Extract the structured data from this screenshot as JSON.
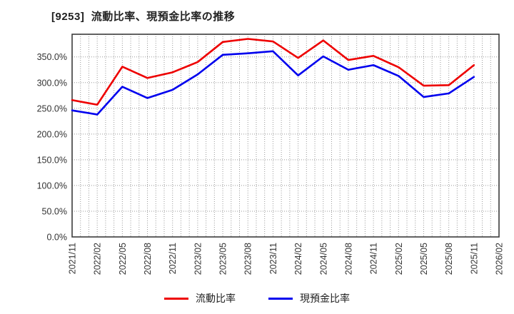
{
  "page": {
    "title": "[9253]  流動比率、現預金比率の推移"
  },
  "chart_data": {
    "type": "line",
    "title": "[9253] 流動比率、現預金比率の推移",
    "categories": [
      "2021/11",
      "2022/02",
      "2022/05",
      "2022/08",
      "2022/11",
      "2023/02",
      "2023/05",
      "2023/08",
      "2023/11",
      "2024/02",
      "2024/05",
      "2024/08",
      "2024/11",
      "2025/02",
      "2025/05",
      "2025/08",
      "2025/11",
      "2026/02"
    ],
    "series": [
      {
        "name": "流動比率",
        "color": "#ee0000",
        "values": [
          266,
          257,
          331,
          309,
          320,
          340,
          379,
          385,
          380,
          348,
          382,
          344,
          352,
          330,
          294,
          295,
          334,
          null
        ]
      },
      {
        "name": "現預金比率",
        "color": "#0000ee",
        "values": [
          246,
          238,
          292,
          270,
          286,
          316,
          354,
          357,
          361,
          314,
          351,
          325,
          334,
          313,
          272,
          279,
          311,
          null
        ]
      }
    ],
    "xlabel": "",
    "ylabel": "",
    "y_ticks": [
      "0.0%",
      "50.0%",
      "100.0%",
      "150.0%",
      "200.0%",
      "250.0%",
      "300.0%",
      "350.0%"
    ],
    "y_tick_values": [
      0,
      50,
      100,
      150,
      200,
      250,
      300,
      350
    ],
    "ylim": [
      0,
      394
    ],
    "grid": "dotted gray; horizontal every 50%, vertical monthly",
    "legend_position": "bottom",
    "colors": {
      "frame": "#3c3c3c",
      "gridline": "#999999",
      "tick_label": "#333333",
      "background": "#ffffff"
    }
  }
}
